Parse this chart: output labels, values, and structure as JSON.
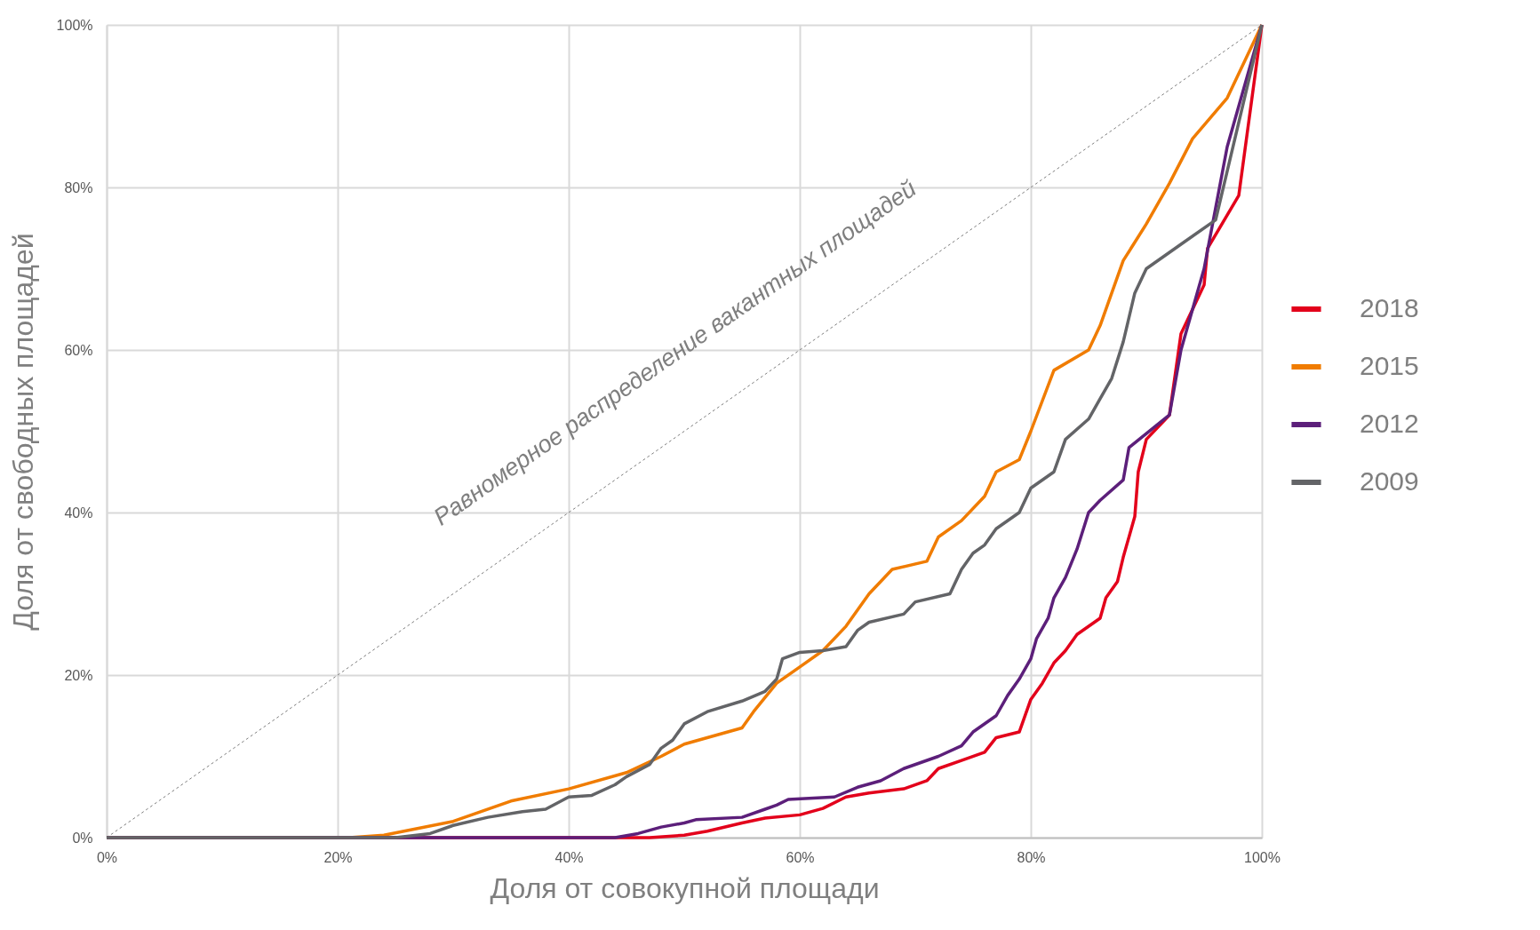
{
  "chart_data": {
    "type": "line",
    "xlabel": "Доля от совокупной площади",
    "ylabel": "Доля от свободных площадей",
    "xlim": [
      0,
      100
    ],
    "ylim": [
      0,
      100
    ],
    "xticks": [
      {
        "value": 0,
        "label": "0%"
      },
      {
        "value": 20,
        "label": "20%"
      },
      {
        "value": 40,
        "label": "40%"
      },
      {
        "value": 60,
        "label": "60%"
      },
      {
        "value": 80,
        "label": "80%"
      },
      {
        "value": 100,
        "label": "100%"
      }
    ],
    "yticks": [
      {
        "value": 0,
        "label": "0%"
      },
      {
        "value": 20,
        "label": "20%"
      },
      {
        "value": 40,
        "label": "40%"
      },
      {
        "value": 60,
        "label": "60%"
      },
      {
        "value": 80,
        "label": "80%"
      },
      {
        "value": 100,
        "label": "100%"
      }
    ],
    "grid": true,
    "legend": "right",
    "line_style": "solid",
    "marker": "none",
    "annotations": [
      "Равномерное распределение вакантных площадей"
    ],
    "series": [
      {
        "name": "2018",
        "color": "#e3001b",
        "x": [
          0,
          47,
          50,
          52,
          55,
          57,
          60,
          62,
          64,
          66,
          69,
          71,
          72,
          74,
          76,
          77,
          79,
          80,
          81,
          82,
          83,
          84,
          86,
          86.5,
          87.5,
          88,
          88.5,
          89,
          89.3,
          90,
          92,
          93,
          95,
          95.3,
          98,
          100
        ],
        "values": [
          0,
          0,
          0.3,
          0.8,
          1.8,
          2.4,
          2.8,
          3.6,
          5,
          5.5,
          6,
          7,
          8.5,
          9.5,
          10.5,
          12.3,
          13,
          17,
          19,
          21.5,
          23,
          25,
          27,
          29.5,
          31.5,
          34.5,
          37,
          39.5,
          45,
          49,
          52,
          62,
          68,
          72.5,
          79,
          100
        ]
      },
      {
        "name": "2015",
        "color": "#f07c00",
        "x": [
          0,
          21,
          24,
          30,
          35,
          40,
          45,
          48,
          50,
          55,
          56,
          58,
          60,
          62,
          64,
          66,
          68,
          71,
          72,
          74,
          76,
          77,
          79,
          80,
          82,
          85,
          86,
          88,
          90,
          92,
          94,
          97,
          100
        ],
        "values": [
          0,
          0,
          0.3,
          2,
          4.5,
          6,
          8,
          10,
          11.5,
          13.5,
          15.5,
          19,
          21,
          23,
          26,
          30,
          33,
          34,
          37,
          39,
          42,
          45,
          46.5,
          50,
          57.5,
          60,
          63,
          71,
          75.5,
          80.5,
          86,
          91,
          100
        ]
      },
      {
        "name": "2012",
        "color": "#5c1f7a",
        "x": [
          0,
          44,
          46,
          48,
          50,
          51,
          55,
          57,
          58,
          59,
          63,
          65,
          67,
          69,
          72,
          74,
          75,
          77,
          78,
          79,
          80,
          80.5,
          81.5,
          82,
          83,
          84,
          85,
          86,
          88,
          88.5,
          92,
          93,
          95,
          97,
          100
        ],
        "values": [
          0,
          0,
          0.5,
          1.3,
          1.8,
          2.2,
          2.5,
          3.5,
          4,
          4.7,
          5,
          6.2,
          7,
          8.5,
          10,
          11.3,
          13,
          15,
          17.5,
          19.5,
          22,
          24.5,
          27,
          29.5,
          32,
          35.5,
          40,
          41.5,
          44,
          48,
          52,
          60,
          70,
          85,
          100
        ]
      },
      {
        "name": "2009",
        "color": "#636467",
        "x": [
          0,
          25,
          28,
          30,
          33,
          36,
          38,
          40,
          42,
          44,
          45,
          47,
          48,
          49,
          50,
          52,
          55,
          57,
          58,
          58.5,
          60,
          62,
          64,
          65,
          66,
          69,
          70,
          73,
          74,
          75,
          76,
          77,
          79,
          80,
          82,
          83,
          85,
          86,
          87,
          88,
          89,
          90,
          93,
          96,
          100
        ],
        "values": [
          0,
          0,
          0.5,
          1.5,
          2.5,
          3.2,
          3.5,
          5,
          5.2,
          6.5,
          7.5,
          9,
          11,
          12,
          14,
          15.5,
          16.8,
          18,
          19.5,
          22,
          22.8,
          23,
          23.5,
          25.5,
          26.5,
          27.5,
          29,
          30,
          33,
          35,
          36,
          38,
          40,
          43,
          45,
          49,
          51.5,
          54,
          56.5,
          61,
          67,
          70,
          73,
          76,
          100
        ]
      },
      {
        "color": "#7f7f7f",
        "line_style": "dashed",
        "x": [
          0,
          100
        ],
        "values": [
          0,
          100
        ]
      }
    ]
  }
}
